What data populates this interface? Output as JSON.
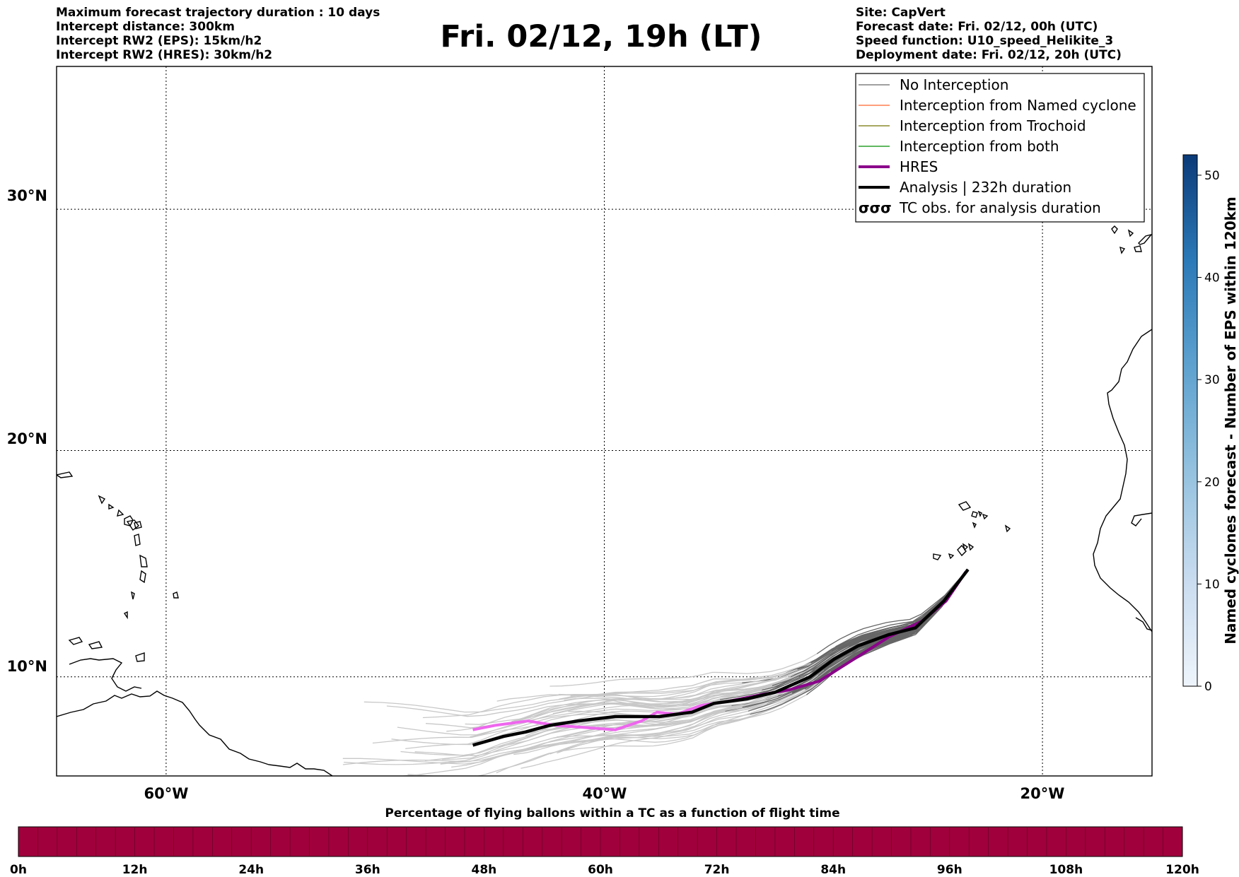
{
  "header": {
    "left": [
      "Maximum forecast trajectory duration : 10 days",
      "Intercept distance: 300km",
      "Intercept RW2 (EPS):  15km/h2",
      "Intercept RW2 (HRES): 30km/h2"
    ],
    "right": [
      "Site: CapVert",
      "Forecast date: Fri. 02/12, 00h (UTC)",
      "Speed function: U10_speed_Helikite_3",
      "Deployment date: Fri. 02/12, 20h (UTC)"
    ],
    "title": "Fri. 02/12, 19h (LT)"
  },
  "map": {
    "lat_labels": [
      "30°N",
      "20°N",
      "10°N"
    ],
    "lon_labels": [
      "60°W",
      "40°W",
      "20°W"
    ],
    "legend": [
      {
        "label": "No Interception",
        "color": "#808080",
        "style": "thin"
      },
      {
        "label": "Interception from Named cyclone",
        "color": "#ff7f50",
        "style": "thin"
      },
      {
        "label": "Interception from Trochoid",
        "color": "#8b8b2e",
        "style": "thin"
      },
      {
        "label": "Interception from both",
        "color": "#2ca02c",
        "style": "thin"
      },
      {
        "label": "HRES",
        "color": "#8b008b",
        "style": "thick"
      },
      {
        "label": "Analysis | 232h duration",
        "color": "#000000",
        "style": "thick"
      },
      {
        "label": "TC obs. for analysis duration",
        "color": "#000000",
        "style": "tc-symbol"
      }
    ],
    "tc_symbol_glyph": "σσσ"
  },
  "chart_data": {
    "type": "line",
    "title": "Fri. 02/12, 19h (LT)",
    "xlabel": "",
    "ylabel": "",
    "x_axis": "longitude (°E, negative = °W)",
    "y_axis": "latitude (°N)",
    "xlim": [
      -65,
      -15
    ],
    "ylim": [
      5.5,
      35.5
    ],
    "grid": true,
    "legend_position": "top-right",
    "series": [
      {
        "name": "Analysis | 232h duration",
        "color": "#000000",
        "points": [
          [
            -23.4,
            14.8
          ],
          [
            -24.5,
            13.4
          ],
          [
            -25.8,
            12.2
          ],
          [
            -27.0,
            11.9
          ],
          [
            -28.4,
            11.4
          ],
          [
            -29.5,
            10.8
          ],
          [
            -30.6,
            10.0
          ],
          [
            -32.2,
            9.3
          ],
          [
            -33.5,
            9.0
          ],
          [
            -35.0,
            8.8
          ],
          [
            -36.0,
            8.4
          ],
          [
            -37.5,
            8.2
          ],
          [
            -39.5,
            8.2
          ],
          [
            -41.2,
            8.0
          ],
          [
            -42.5,
            7.8
          ],
          [
            -43.6,
            7.5
          ],
          [
            -44.6,
            7.3
          ],
          [
            -46.0,
            6.9
          ]
        ]
      },
      {
        "name": "HRES",
        "color": "#8b008b",
        "segment": "dark",
        "points": [
          [
            -23.5,
            14.7
          ],
          [
            -24.4,
            13.4
          ],
          [
            -25.5,
            12.5
          ],
          [
            -27.0,
            11.8
          ],
          [
            -28.6,
            10.8
          ],
          [
            -30.2,
            9.8
          ],
          [
            -31.6,
            9.4
          ],
          [
            -32.8,
            9.2
          ],
          [
            -34.3,
            8.9
          ]
        ]
      },
      {
        "name": "HRES",
        "color": "#ee66ee",
        "segment": "light",
        "points": [
          [
            -34.3,
            8.9
          ],
          [
            -35.6,
            8.7
          ],
          [
            -36.7,
            8.3
          ],
          [
            -37.6,
            8.4
          ],
          [
            -38.3,
            8.0
          ],
          [
            -39.5,
            7.6
          ],
          [
            -40.8,
            7.7
          ],
          [
            -42.2,
            7.8
          ],
          [
            -43.5,
            8.0
          ],
          [
            -45.0,
            7.8
          ],
          [
            -46.0,
            7.6
          ]
        ]
      }
    ],
    "ensemble_members": {
      "name": "No Interception",
      "color": "#808080",
      "note": "about 50 members from the launch site, drawn darker near the start (within 120h) and lighter beyond"
    },
    "right_colorbar": {
      "label": "Named cyclones forecast - Number of EPS within 120km",
      "range": [
        0,
        52
      ],
      "ticks": [
        0,
        10,
        20,
        30,
        40,
        50
      ]
    },
    "bottom_colorbar": {
      "title": "Percentage of flying ballons within a TC as a function of flight time",
      "ticks": [
        "0h",
        "12h",
        "24h",
        "36h",
        "48h",
        "60h",
        "72h",
        "84h",
        "96h",
        "108h",
        "120h"
      ],
      "color": "#a0003c",
      "range_hours": [
        0,
        120
      ]
    }
  }
}
